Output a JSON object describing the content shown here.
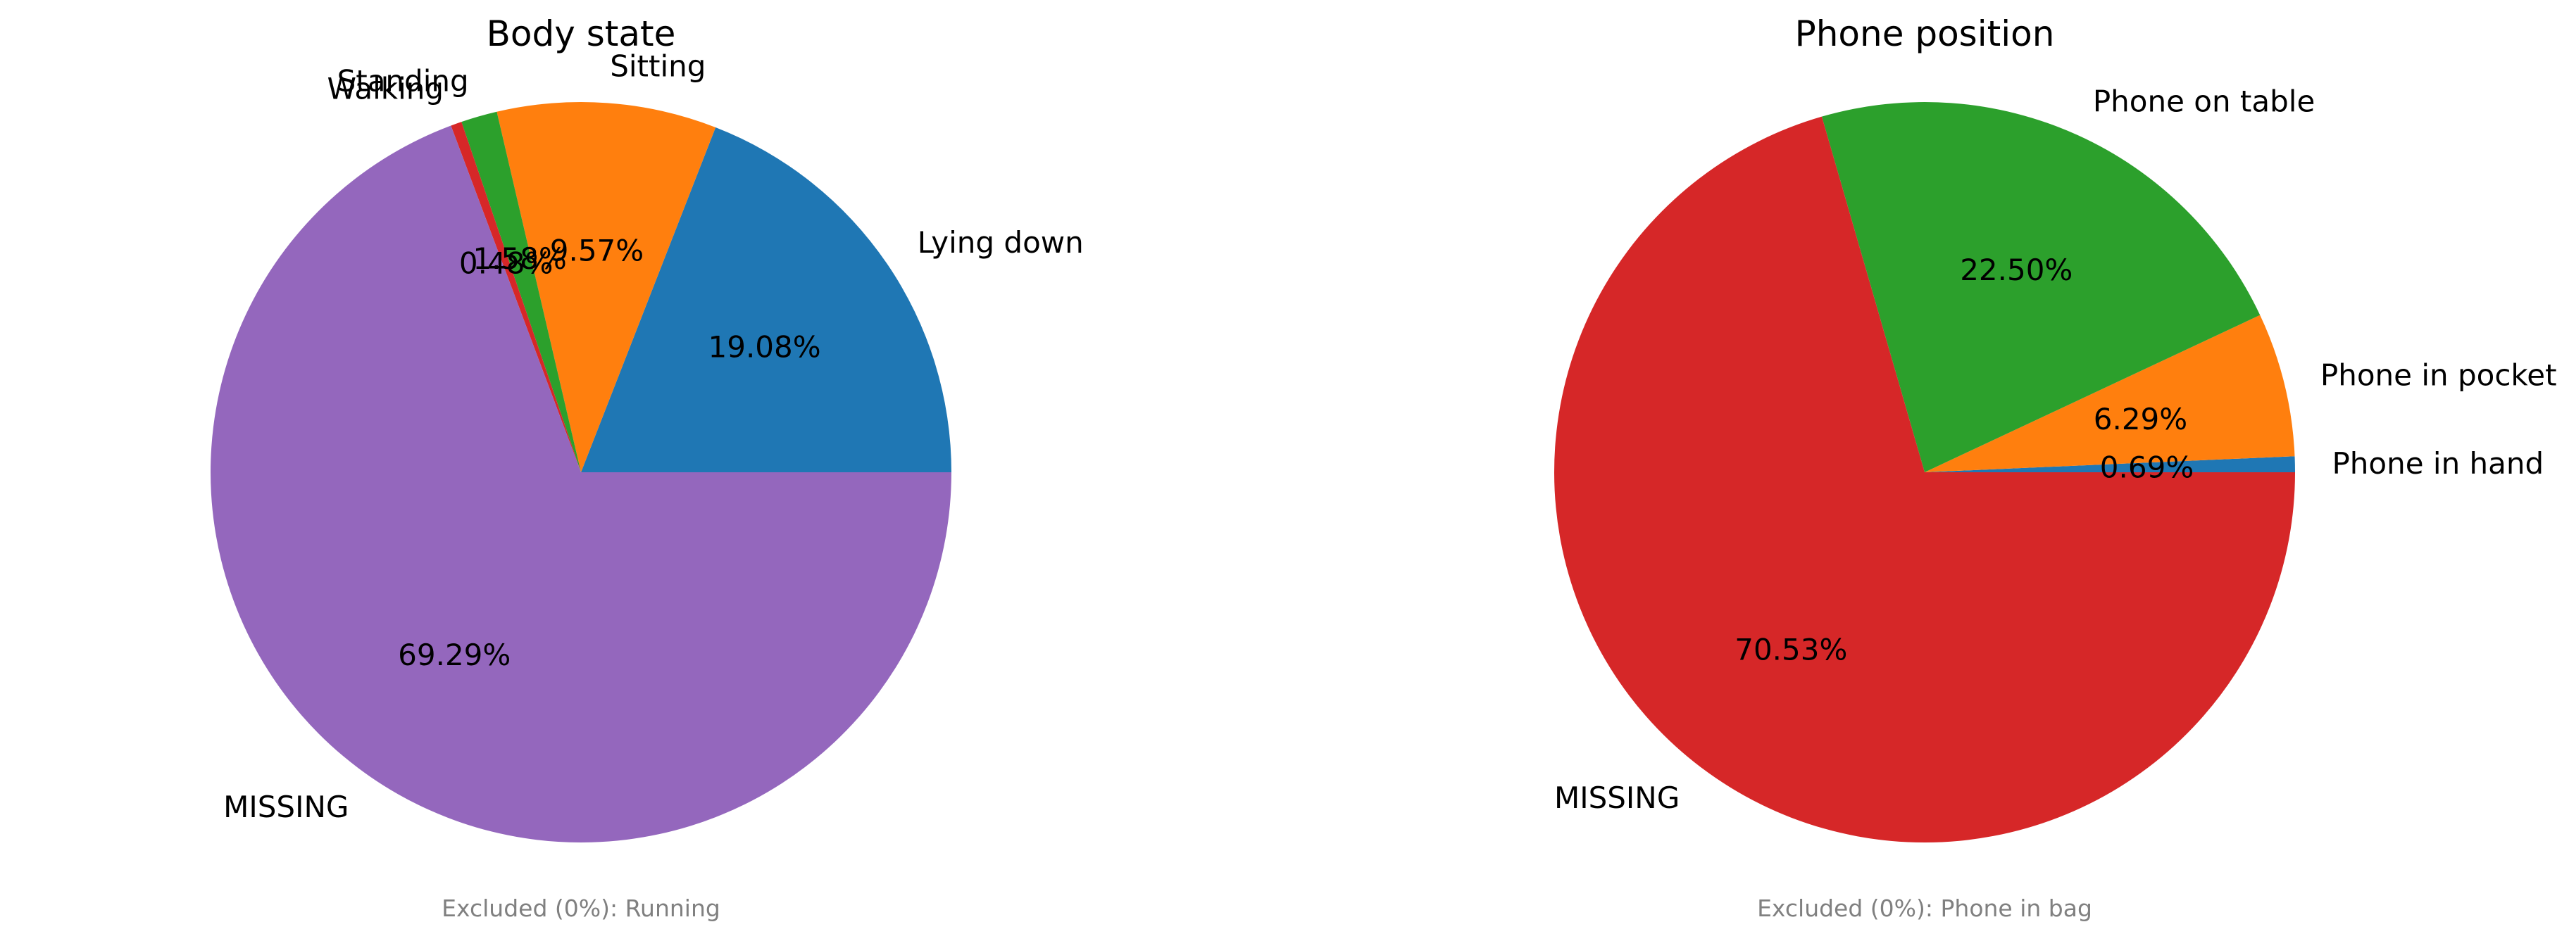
{
  "chart_data": [
    {
      "type": "pie",
      "title": "Body state",
      "slices": [
        {
          "label": "Lying down",
          "value": 19.08,
          "pct_label": "19.08%",
          "color": "#1f77b4"
        },
        {
          "label": "Sitting",
          "value": 9.57,
          "pct_label": "9.57%",
          "color": "#ff7f0e"
        },
        {
          "label": "Standing",
          "value": 1.58,
          "pct_label": "1.58%",
          "color": "#2ca02c"
        },
        {
          "label": "Walking",
          "value": 0.48,
          "pct_label": "0.48%",
          "color": "#d62728"
        },
        {
          "label": "MISSING",
          "value": 69.29,
          "pct_label": "69.29%",
          "color": "#9467bd"
        }
      ],
      "footnote": "Excluded (0%): Running"
    },
    {
      "type": "pie",
      "title": "Phone position",
      "slices": [
        {
          "label": "Phone in hand",
          "value": 0.69,
          "pct_label": "0.69%",
          "color": "#1f77b4"
        },
        {
          "label": "Phone in pocket",
          "value": 6.29,
          "pct_label": "6.29%",
          "color": "#ff7f0e"
        },
        {
          "label": "Phone on table",
          "value": 22.5,
          "pct_label": "22.50%",
          "color": "#2ca02c"
        },
        {
          "label": "MISSING",
          "value": 70.53,
          "pct_label": "70.53%",
          "color": "#d62728"
        }
      ],
      "footnote": "Excluded (0%): Phone in bag"
    }
  ]
}
